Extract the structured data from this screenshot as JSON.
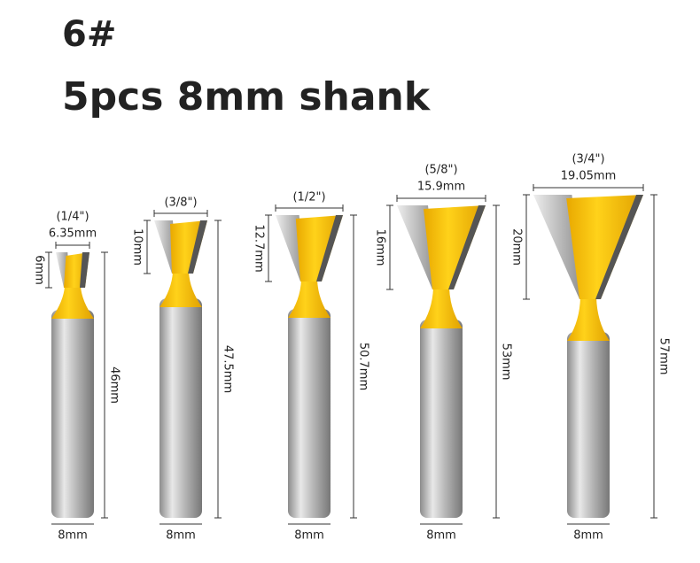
{
  "header": {
    "title": "6#",
    "subtitle": "5pcs 8mm shank"
  },
  "bits": [
    {
      "inch": "(1/4\")",
      "width": "6.35mm",
      "head_height": "6mm",
      "length": "46mm",
      "shank": "8mm"
    },
    {
      "inch": "(3/8\")",
      "head_height": "10mm",
      "length": "47.5mm",
      "shank": "8mm"
    },
    {
      "inch": "(1/2\")",
      "head_height": "12.7mm",
      "length": "50.7mm",
      "shank": "8mm"
    },
    {
      "inch": "(5/8\")",
      "width": "15.9mm",
      "head_height": "16mm",
      "length": "53mm",
      "shank": "8mm"
    },
    {
      "inch": "(3/4\")",
      "width": "19.05mm",
      "head_height": "20mm",
      "length": "57mm",
      "shank": "8mm"
    }
  ]
}
